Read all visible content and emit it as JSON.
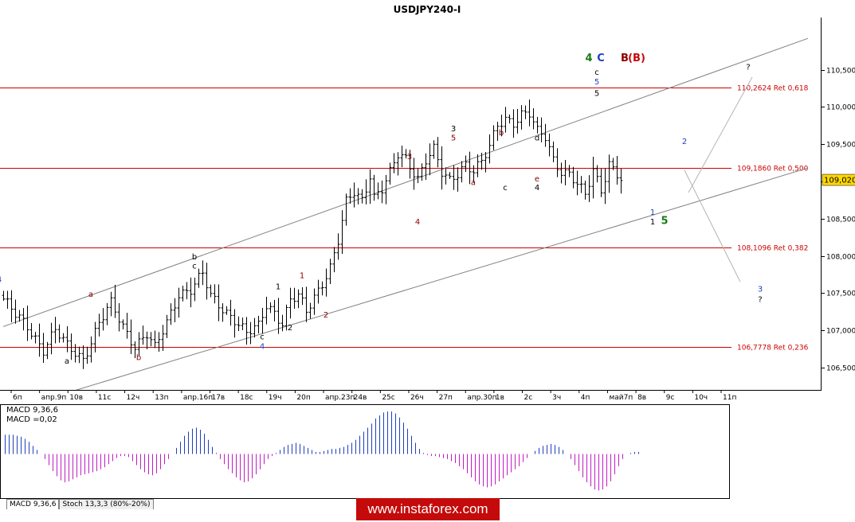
{
  "chart_data": {
    "type": "candlestick",
    "title": "USDJPY240-I",
    "symbol": "USDJPY",
    "timeframe": "H4",
    "current_price": "109,020",
    "price_axis_ticks": [
      "110,500",
      "110,000",
      "109,500",
      "109,000",
      "108,500",
      "108,000",
      "107,500",
      "107,000",
      "106,500"
    ],
    "ylim": [
      106.2,
      111.2
    ],
    "time_axis_ticks": [
      "6п",
      "апр.9п",
      "10в",
      "11с",
      "12ч",
      "13п",
      "апр.16п",
      "17в",
      "18с",
      "19ч",
      "20п",
      "апр.23п",
      "24в",
      "25с",
      "26ч",
      "27п",
      "апр.30п",
      "1в",
      "2с",
      "3ч",
      "4п",
      "май7п",
      "8в",
      "9с",
      "10ч",
      "11п"
    ],
    "time_range": "6 Apr – 11 May (2018 implied)",
    "candles_visible": 156,
    "price_path_keypoints": [
      {
        "idx": 0,
        "price": 107.42
      },
      {
        "idx": 3,
        "price": 107.2
      },
      {
        "idx": 6,
        "price": 107.05
      },
      {
        "idx": 10,
        "price": 106.75
      },
      {
        "idx": 13,
        "price": 107.0
      },
      {
        "idx": 16,
        "price": 106.78
      },
      {
        "idx": 20,
        "price": 106.62
      },
      {
        "idx": 24,
        "price": 107.1
      },
      {
        "idx": 27,
        "price": 107.35
      },
      {
        "idx": 30,
        "price": 107.05
      },
      {
        "idx": 33,
        "price": 106.8
      },
      {
        "idx": 36,
        "price": 106.95
      },
      {
        "idx": 38,
        "price": 106.75
      },
      {
        "idx": 41,
        "price": 107.1
      },
      {
        "idx": 44,
        "price": 107.5
      },
      {
        "idx": 47,
        "price": 107.55
      },
      {
        "idx": 50,
        "price": 107.75
      },
      {
        "idx": 52,
        "price": 107.45
      },
      {
        "idx": 55,
        "price": 107.3
      },
      {
        "idx": 58,
        "price": 107.15
      },
      {
        "idx": 61,
        "price": 106.95
      },
      {
        "idx": 64,
        "price": 107.05
      },
      {
        "idx": 66,
        "price": 107.35
      },
      {
        "idx": 68,
        "price": 107.25
      },
      {
        "idx": 70,
        "price": 107.1
      },
      {
        "idx": 72,
        "price": 107.4
      },
      {
        "idx": 74,
        "price": 107.45
      },
      {
        "idx": 76,
        "price": 107.25
      },
      {
        "idx": 79,
        "price": 107.55
      },
      {
        "idx": 82,
        "price": 107.85
      },
      {
        "idx": 84,
        "price": 108.2
      },
      {
        "idx": 86,
        "price": 108.7
      },
      {
        "idx": 88,
        "price": 108.85
      },
      {
        "idx": 90,
        "price": 108.75
      },
      {
        "idx": 92,
        "price": 109.1
      },
      {
        "idx": 93,
        "price": 108.8
      },
      {
        "idx": 95,
        "price": 108.9
      },
      {
        "idx": 97,
        "price": 109.1
      },
      {
        "idx": 99,
        "price": 109.35
      },
      {
        "idx": 101,
        "price": 109.3
      },
      {
        "idx": 104,
        "price": 109.05
      },
      {
        "idx": 106,
        "price": 109.3
      },
      {
        "idx": 108,
        "price": 109.42
      },
      {
        "idx": 110,
        "price": 109.1
      },
      {
        "idx": 112,
        "price": 109.0
      },
      {
        "idx": 114,
        "price": 109.12
      },
      {
        "idx": 116,
        "price": 109.25
      },
      {
        "idx": 118,
        "price": 109.15
      },
      {
        "idx": 120,
        "price": 109.25
      },
      {
        "idx": 122,
        "price": 109.45
      },
      {
        "idx": 124,
        "price": 109.75
      },
      {
        "idx": 126,
        "price": 109.85
      },
      {
        "idx": 128,
        "price": 109.8
      },
      {
        "idx": 130,
        "price": 109.9
      },
      {
        "idx": 132,
        "price": 109.9
      },
      {
        "idx": 134,
        "price": 109.65
      },
      {
        "idx": 136,
        "price": 109.6
      },
      {
        "idx": 138,
        "price": 109.3
      },
      {
        "idx": 140,
        "price": 109.15
      },
      {
        "idx": 142,
        "price": 109.1
      },
      {
        "idx": 144,
        "price": 108.95
      },
      {
        "idx": 146,
        "price": 108.8
      },
      {
        "idx": 148,
        "price": 109.15
      },
      {
        "idx": 150,
        "price": 108.9
      },
      {
        "idx": 152,
        "price": 109.25
      },
      {
        "idx": 154,
        "price": 109.1
      },
      {
        "idx": 155,
        "price": 109.02
      }
    ],
    "fibonacci_levels": [
      {
        "price": 110.2624,
        "label": "110,2624 Ret 0,618"
      },
      {
        "price": 109.186,
        "label": "109,1860 Ret 0,500"
      },
      {
        "price": 108.1096,
        "label": "108,1096 Ret 0,382"
      },
      {
        "price": 106.7778,
        "label": "106,7778 Ret 0,236"
      }
    ],
    "channel_lines": [
      {
        "from": {
          "idx": 0,
          "price": 107.05
        },
        "to": {
          "idx": 202,
          "price": 110.92
        }
      },
      {
        "from": {
          "idx": 0,
          "price": 105.9
        },
        "to": {
          "idx": 202,
          "price": 109.18
        }
      }
    ],
    "projection_lines": [
      {
        "from": {
          "idx": 172,
          "price": 108.85
        },
        "to": {
          "idx": 188,
          "price": 110.4
        }
      },
      {
        "from": {
          "idx": 171,
          "price": 109.15
        },
        "to": {
          "idx": 185,
          "price": 107.65
        }
      }
    ],
    "wave_labels": [
      {
        "text": "4",
        "idx": -1,
        "price": 107.65,
        "color": "#1f3fbf"
      },
      {
        "text": "a",
        "idx": 22,
        "price": 107.45,
        "color": "#8b0000"
      },
      {
        "text": "a",
        "idx": 16,
        "price": 106.55,
        "color": "#000000"
      },
      {
        "text": "b",
        "idx": 34,
        "price": 106.6,
        "color": "#8b0000"
      },
      {
        "text": "b",
        "idx": 48,
        "price": 107.95,
        "color": "#000000"
      },
      {
        "text": "c",
        "idx": 48,
        "price": 107.83,
        "color": "#000000"
      },
      {
        "text": "1",
        "idx": 69,
        "price": 107.55,
        "color": "#000000"
      },
      {
        "text": "1",
        "idx": 75,
        "price": 107.7,
        "color": "#8b0000"
      },
      {
        "text": "2",
        "idx": 72,
        "price": 107.0,
        "color": "#000000"
      },
      {
        "text": "2",
        "idx": 81,
        "price": 107.17,
        "color": "#8b0000"
      },
      {
        "text": "c",
        "idx": 65,
        "price": 106.88,
        "color": "#000000"
      },
      {
        "text": "4",
        "idx": 65,
        "price": 106.75,
        "color": "#1f3fbf"
      },
      {
        "text": "3",
        "idx": 102,
        "price": 109.3,
        "color": "#8b0000"
      },
      {
        "text": "4",
        "idx": 104,
        "price": 108.42,
        "color": "#8b0000"
      },
      {
        "text": "3",
        "idx": 113,
        "price": 109.67,
        "color": "#000000"
      },
      {
        "text": "5",
        "idx": 113,
        "price": 109.55,
        "color": "#8b0000"
      },
      {
        "text": "a",
        "idx": 118,
        "price": 108.95,
        "color": "#8b0000"
      },
      {
        "text": "b",
        "idx": 125,
        "price": 109.62,
        "color": "#8b0000"
      },
      {
        "text": "c",
        "idx": 126,
        "price": 108.88,
        "color": "#000000"
      },
      {
        "text": "d",
        "idx": 134,
        "price": 109.55,
        "color": "#000000"
      },
      {
        "text": "e",
        "idx": 134,
        "price": 109.0,
        "color": "#8b0000"
      },
      {
        "text": "4",
        "idx": 134,
        "price": 108.88,
        "color": "#000000"
      },
      {
        "text": "5",
        "idx": 149,
        "price": 110.15,
        "color": "#000000"
      },
      {
        "text": "5",
        "idx": 149,
        "price": 110.3,
        "color": "#1f3fbf"
      },
      {
        "text": "c",
        "idx": 149,
        "price": 110.43,
        "color": "#000000"
      },
      {
        "text": "2",
        "idx": 171,
        "price": 109.5,
        "color": "#1f3fbf"
      },
      {
        "text": "1",
        "idx": 163,
        "price": 108.55,
        "color": "#1f3fbf"
      },
      {
        "text": "1",
        "idx": 163,
        "price": 108.42,
        "color": "#000000"
      },
      {
        "text": "?",
        "idx": 187,
        "price": 110.5,
        "color": "#000000"
      },
      {
        "text": "3",
        "idx": 190,
        "price": 107.52,
        "color": "#1f3fbf"
      },
      {
        "text": "?",
        "idx": 190,
        "price": 107.38,
        "color": "#000000"
      }
    ],
    "big_labels": [
      {
        "text": "4",
        "idx": 147,
        "price": 110.61,
        "color": "#1a7a1a"
      },
      {
        "text": "C",
        "idx": 150,
        "price": 110.61,
        "color": "#1f3fbf"
      },
      {
        "text": "B",
        "idx": 156,
        "price": 110.61,
        "color": "#8b0000"
      },
      {
        "text": "(B)",
        "idx": 159,
        "price": 110.61,
        "color": "#c40a0a"
      },
      {
        "text": "5",
        "idx": 166,
        "price": 108.43,
        "color": "#1a7a1a"
      }
    ],
    "macd": {
      "label": "MACD 9,36,6",
      "value_label": "MACD =0,02",
      "histogram": [
        0.19,
        0.19,
        0.19,
        0.18,
        0.17,
        0.15,
        0.12,
        0.08,
        0.04,
        0.0,
        -0.05,
        -0.11,
        -0.17,
        -0.22,
        -0.26,
        -0.28,
        -0.27,
        -0.25,
        -0.23,
        -0.21,
        -0.2,
        -0.19,
        -0.18,
        -0.17,
        -0.15,
        -0.13,
        -0.1,
        -0.07,
        -0.04,
        -0.02,
        -0.02,
        -0.03,
        -0.07,
        -0.11,
        -0.15,
        -0.18,
        -0.2,
        -0.21,
        -0.19,
        -0.15,
        -0.1,
        -0.05,
        0.0,
        0.06,
        0.12,
        0.18,
        0.22,
        0.25,
        0.26,
        0.24,
        0.2,
        0.14,
        0.07,
        0.01,
        -0.05,
        -0.1,
        -0.15,
        -0.19,
        -0.23,
        -0.26,
        -0.28,
        -0.27,
        -0.24,
        -0.2,
        -0.15,
        -0.1,
        -0.05,
        -0.02,
        0.01,
        0.04,
        0.07,
        0.09,
        0.1,
        0.11,
        0.1,
        0.08,
        0.06,
        0.04,
        0.02,
        0.02,
        0.03,
        0.04,
        0.05,
        0.05,
        0.06,
        0.07,
        0.09,
        0.11,
        0.14,
        0.18,
        0.22,
        0.26,
        0.3,
        0.35,
        0.38,
        0.41,
        0.42,
        0.42,
        0.4,
        0.36,
        0.31,
        0.25,
        0.18,
        0.11,
        0.05,
        0.01,
        -0.01,
        -0.02,
        -0.02,
        -0.03,
        -0.04,
        -0.05,
        -0.07,
        -0.09,
        -0.12,
        -0.15,
        -0.19,
        -0.23,
        -0.27,
        -0.3,
        -0.32,
        -0.33,
        -0.32,
        -0.3,
        -0.27,
        -0.24,
        -0.21,
        -0.18,
        -0.15,
        -0.12,
        -0.08,
        -0.04,
        0.0,
        0.03,
        0.06,
        0.08,
        0.09,
        0.1,
        0.09,
        0.07,
        0.04,
        0.0,
        -0.05,
        -0.11,
        -0.17,
        -0.23,
        -0.28,
        -0.32,
        -0.35,
        -0.36,
        -0.35,
        -0.32,
        -0.27,
        -0.2,
        -0.12,
        -0.05,
        0.0,
        0.01,
        0.02,
        0.02
      ],
      "ylim": [
        -0.42,
        0.46
      ]
    }
  },
  "ui": {
    "tabs": [
      {
        "label": "MACD 9,36,6"
      },
      {
        "label": "Stoch 13,3,3 (80%-20%)"
      }
    ],
    "brand": "www.instaforex.com"
  },
  "colors": {
    "fib": "#cc0000",
    "channel": "#808080",
    "projection": "#b4b4b4",
    "candle": "#000000",
    "macd_up": "#1f3fbf",
    "macd_down": "#c21cc2",
    "brand_bg": "#c40a0a",
    "frame": "#000000"
  }
}
